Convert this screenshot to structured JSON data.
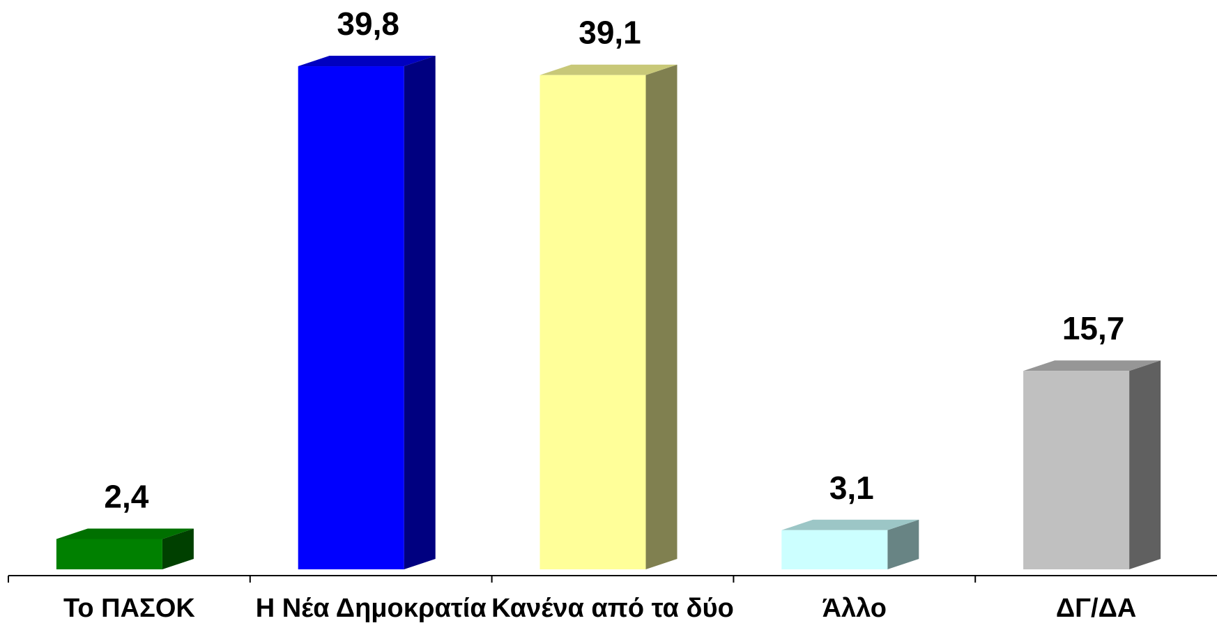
{
  "chart_data": {
    "type": "bar",
    "style": "3d",
    "categories": [
      "Το ΠΑΣΟΚ",
      "Η Νέα Δημοκρατία",
      "Κανένα από τα δύο",
      "Άλλο",
      "ΔΓ/ΔΑ"
    ],
    "values": [
      2.4,
      39.8,
      39.1,
      3.1,
      15.7
    ],
    "value_labels": [
      "2,4",
      "39,8",
      "39,1",
      "3,1",
      "15,7"
    ],
    "colors": [
      {
        "front": "#008000",
        "top": "#007000",
        "side": "#004000"
      },
      {
        "front": "#0000FF",
        "top": "#0000C0",
        "side": "#000080"
      },
      {
        "front": "#FFFF99",
        "top": "#C8C878",
        "side": "#808050"
      },
      {
        "front": "#CCFFFF",
        "top": "#9CC6C6",
        "side": "#688484"
      },
      {
        "front": "#C0C0C0",
        "top": "#969696",
        "side": "#606060"
      }
    ],
    "ylim": [
      0,
      40
    ],
    "grid": false,
    "legend": "none"
  }
}
